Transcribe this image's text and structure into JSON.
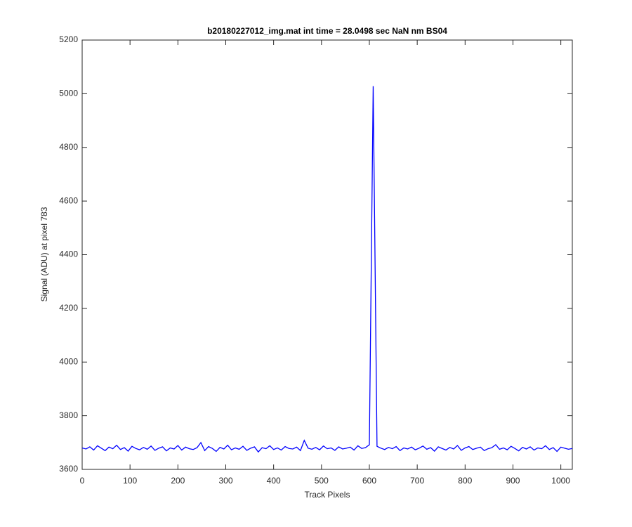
{
  "chart_data": {
    "type": "line",
    "title": "b20180227012_img.mat int time = 28.0498 sec  NaN nm BS04",
    "x_label": "Track Pixels",
    "y_label": "Signal (ADU) at pixel 783",
    "xlim": [
      0,
      1024
    ],
    "ylim": [
      3600,
      5200
    ],
    "xticks": [
      0,
      100,
      200,
      300,
      400,
      500,
      600,
      700,
      800,
      900,
      1000
    ],
    "yticks": [
      3600,
      3800,
      4000,
      4200,
      4400,
      4600,
      4800,
      5000,
      5200
    ],
    "grid": false,
    "series": [
      {
        "color": "#0000ff",
        "x": [
          0,
          8,
          16,
          24,
          32,
          40,
          48,
          56,
          64,
          72,
          80,
          88,
          96,
          104,
          112,
          120,
          128,
          136,
          144,
          152,
          160,
          168,
          176,
          184,
          192,
          200,
          208,
          216,
          224,
          232,
          240,
          248,
          256,
          264,
          272,
          280,
          288,
          296,
          304,
          312,
          320,
          328,
          336,
          344,
          352,
          360,
          368,
          376,
          384,
          392,
          400,
          408,
          416,
          424,
          432,
          440,
          448,
          456,
          464,
          472,
          480,
          488,
          496,
          504,
          512,
          520,
          528,
          536,
          544,
          552,
          560,
          568,
          576,
          584,
          592,
          600,
          608,
          616,
          624,
          632,
          640,
          648,
          656,
          664,
          672,
          680,
          688,
          696,
          704,
          712,
          720,
          728,
          736,
          744,
          752,
          760,
          768,
          776,
          784,
          792,
          800,
          808,
          816,
          824,
          832,
          840,
          848,
          856,
          864,
          872,
          880,
          888,
          896,
          904,
          912,
          920,
          928,
          936,
          944,
          952,
          960,
          968,
          976,
          984,
          992,
          1000,
          1008,
          1016,
          1024
        ],
        "values": [
          3680,
          3676,
          3684,
          3672,
          3688,
          3679,
          3670,
          3683,
          3677,
          3690,
          3674,
          3681,
          3668,
          3686,
          3678,
          3673,
          3682,
          3675,
          3687,
          3671,
          3679,
          3684,
          3669,
          3680,
          3676,
          3689,
          3672,
          3683,
          3677,
          3674,
          3681,
          3700,
          3670,
          3685,
          3678,
          3667,
          3682,
          3676,
          3690,
          3673,
          3680,
          3675,
          3686,
          3671,
          3679,
          3684,
          3665,
          3681,
          3677,
          3688,
          3674,
          3680,
          3672,
          3685,
          3678,
          3676,
          3683,
          3670,
          3708,
          3679,
          3675,
          3682,
          3673,
          3687,
          3677,
          3680,
          3671,
          3684,
          3676,
          3679,
          3683,
          3672,
          3688,
          3678,
          3681,
          3692,
          5028,
          3686,
          3679,
          3674,
          3682,
          3677,
          3685,
          3670,
          3680,
          3676,
          3683,
          3673,
          3679,
          3687,
          3675,
          3681,
          3668,
          3684,
          3678,
          3672,
          3682,
          3676,
          3689,
          3671,
          3680,
          3685,
          3674,
          3679,
          3683,
          3670,
          3677,
          3681,
          3692,
          3675,
          3680,
          3673,
          3686,
          3678,
          3669,
          3682,
          3676,
          3684,
          3672,
          3680,
          3677,
          3688,
          3674,
          3681,
          3667,
          3683,
          3679,
          3675,
          3678
        ]
      }
    ]
  }
}
